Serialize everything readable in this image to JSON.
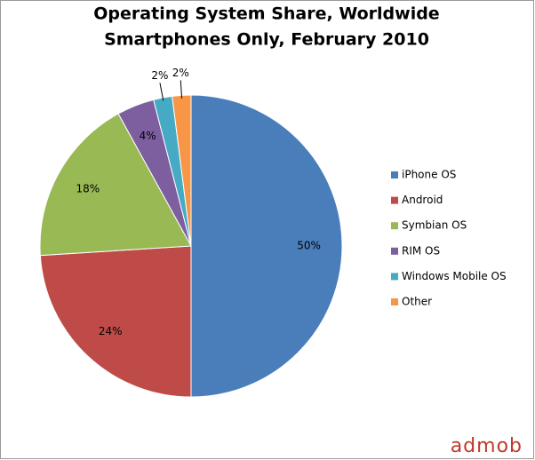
{
  "chart_data": {
    "type": "pie",
    "title": "Operating System Share, Worldwide",
    "subtitle": "Smartphones Only, February 2010",
    "categories": [
      "iPhone OS",
      "Android",
      "Symbian OS",
      "RIM OS",
      "Windows Mobile OS",
      "Other"
    ],
    "values": [
      50,
      24,
      18,
      4,
      2,
      2
    ],
    "value_labels": [
      "50%",
      "24%",
      "18%",
      "4%",
      "2%",
      "2%"
    ],
    "colors": [
      "#4a7ebb",
      "#be4b48",
      "#98b954",
      "#7d5fa0",
      "#46aac5",
      "#f79646"
    ],
    "legend": "right",
    "logo": "admob"
  }
}
